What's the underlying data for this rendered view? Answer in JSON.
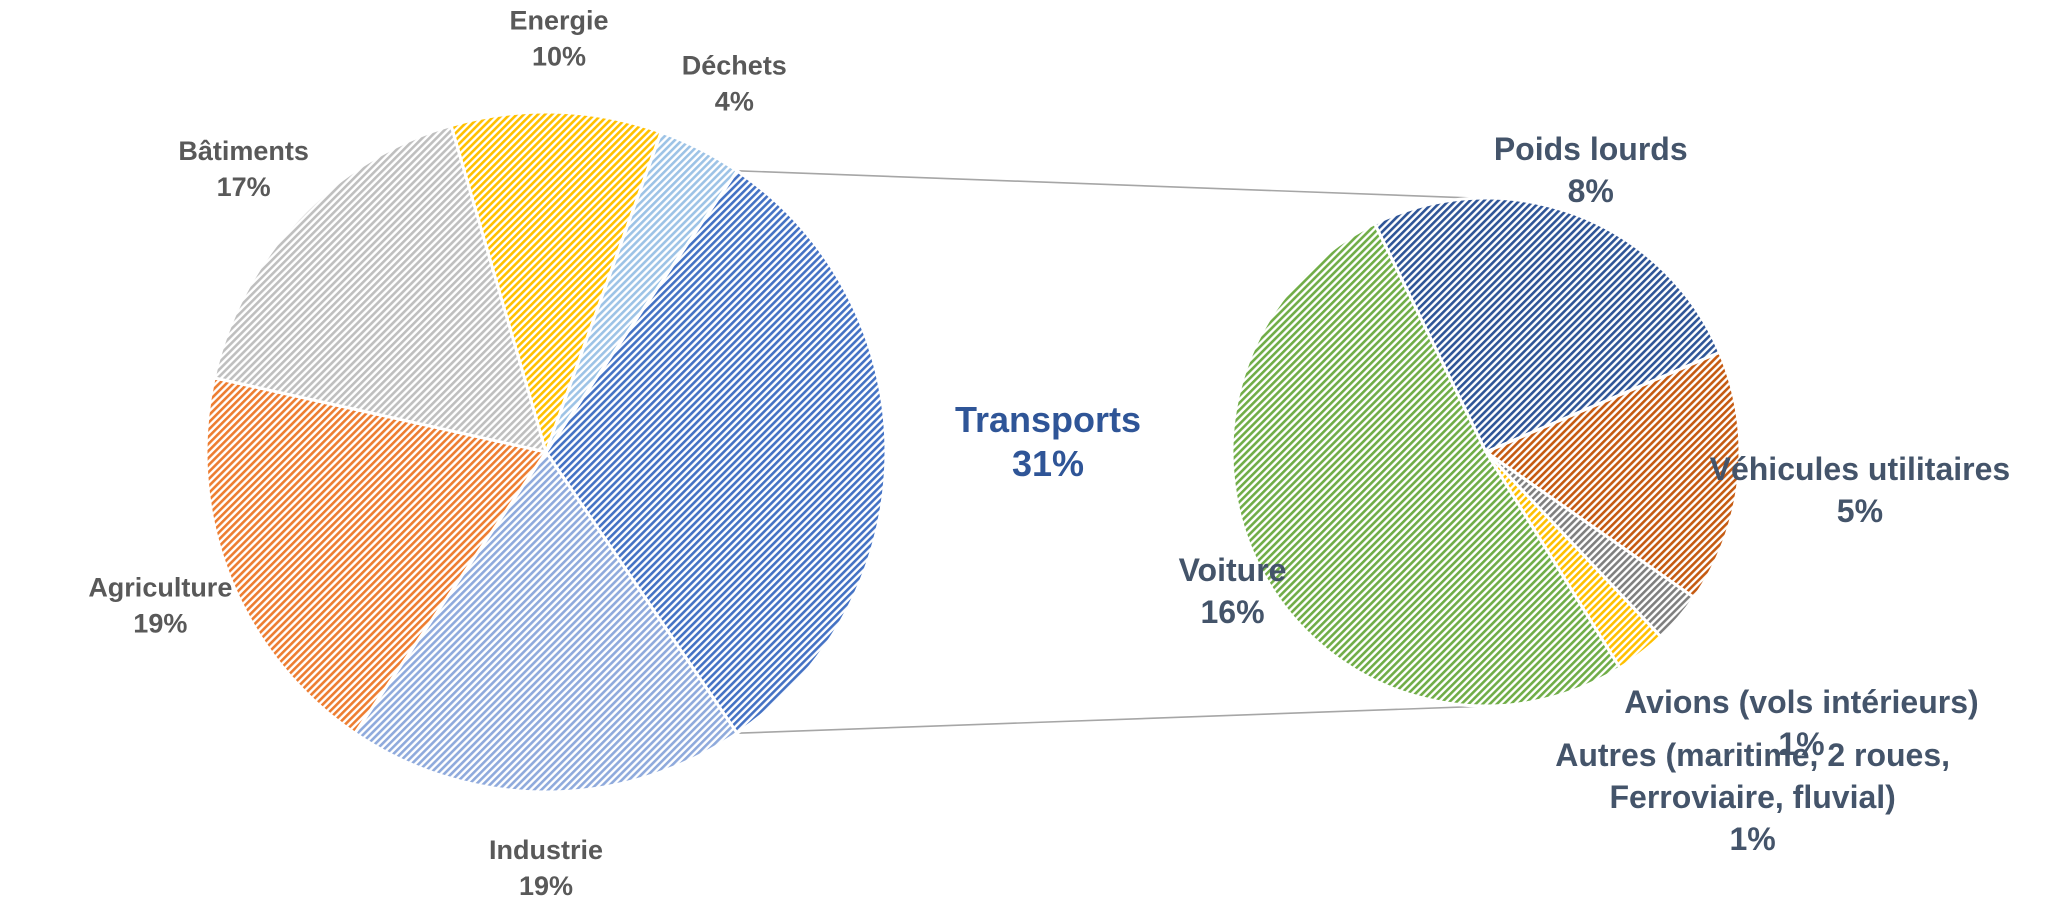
{
  "chart_data": [
    {
      "type": "pie",
      "title": "",
      "slices": [
        {
          "label": "Transports",
          "value": 31,
          "display": "31%",
          "color": "#4472c4"
        },
        {
          "label": "Industrie",
          "value": 19,
          "display": "19%",
          "color": "#8faadc"
        },
        {
          "label": "Agriculture",
          "value": 19,
          "display": "19%",
          "color": "#ed7d31"
        },
        {
          "label": "Bâtiments",
          "value": 17,
          "display": "17%",
          "color": "#bfbfbf"
        },
        {
          "label": "Energie",
          "value": 10,
          "display": "10%",
          "color": "#ffc000"
        },
        {
          "label": "Déchets",
          "value": 4,
          "display": "4%",
          "color": "#9dc3e6"
        }
      ]
    },
    {
      "type": "pie",
      "title": "",
      "parent": "Transports",
      "slices": [
        {
          "label": "Poids lourds",
          "value": 8,
          "display": "8%",
          "color": "#2f5597"
        },
        {
          "label": "Véhicules utilitaires",
          "value": 5,
          "display": "5%",
          "color": "#c55a11"
        },
        {
          "label": "Avions (vols intérieurs)",
          "value": 1,
          "display": "1%",
          "color": "#7f7f7f"
        },
        {
          "label": "Autres (maritime, 2 roues, Ferroviaire, fluvial)",
          "value": 1,
          "display": "1%",
          "color": "#ffc000"
        },
        {
          "label": "Voiture",
          "value": 16,
          "display": "16%",
          "color": "#70ad47"
        }
      ]
    }
  ]
}
